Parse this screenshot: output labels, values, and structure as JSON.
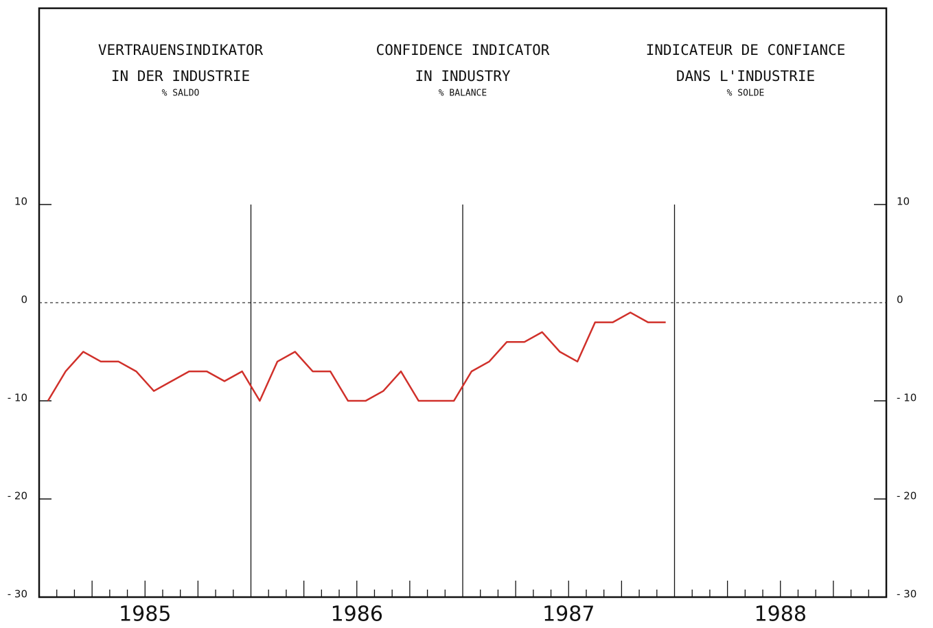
{
  "chart_data": {
    "type": "line",
    "titles": [
      {
        "lines": [
          "VERTRAUENSINDIKATOR",
          "IN DER INDUSTRIE"
        ],
        "unit": "% SALDO"
      },
      {
        "lines": [
          "CONFIDENCE INDICATOR",
          "IN INDUSTRY"
        ],
        "unit": "% BALANCE"
      },
      {
        "lines": [
          "INDICATEUR DE CONFIANCE",
          "DANS L'INDUSTRIE"
        ],
        "unit": "% SOLDE"
      }
    ],
    "categories": [
      "1985",
      "1986",
      "1987",
      "1988"
    ],
    "x": [
      0.5,
      1.5,
      2.5,
      3.5,
      4.5,
      5.5,
      6.5,
      7.5,
      8.5,
      9.5,
      10.5,
      11.5,
      12.5,
      13.5,
      14.5,
      15.5,
      16.5,
      17.5,
      18.5,
      19.5,
      20.5,
      21.5,
      22.5,
      23.5,
      24.5,
      25.5,
      26.5,
      27.5,
      28.5,
      29.5,
      30.5,
      31.5,
      32.5,
      33.5,
      34.5,
      35.5
    ],
    "series": [
      {
        "color": "#d0302a",
        "values": [
          -10,
          -7,
          -5,
          -6,
          -6,
          -7,
          -9,
          -8,
          -7,
          -7,
          -8,
          -7,
          -10,
          -6,
          -5,
          -7,
          -7,
          -10,
          -10,
          -9,
          -7,
          -10,
          -10,
          -10,
          -7,
          -6,
          -4,
          -4,
          -3,
          -5,
          -6,
          -2,
          -2,
          -1,
          -2,
          -2
        ]
      }
    ],
    "xlim": [
      0,
      48
    ],
    "xticks": [
      0,
      1,
      2,
      3,
      4,
      5,
      6,
      7,
      8,
      9,
      10,
      11,
      12,
      13,
      14,
      15,
      16,
      17,
      18,
      19,
      20,
      21,
      22,
      23,
      24,
      25,
      26,
      27,
      28,
      29,
      30,
      31,
      32,
      33,
      34,
      35,
      36,
      37,
      38,
      39,
      40,
      41,
      42,
      43,
      44,
      45,
      46,
      47,
      48
    ],
    "ylim": [
      -30,
      30
    ],
    "yticks": [
      {
        "value": -30,
        "label": "- 30"
      },
      {
        "value": -20,
        "label": "- 20"
      },
      {
        "value": -10,
        "label": "- 10"
      },
      0,
      10
    ]
  }
}
